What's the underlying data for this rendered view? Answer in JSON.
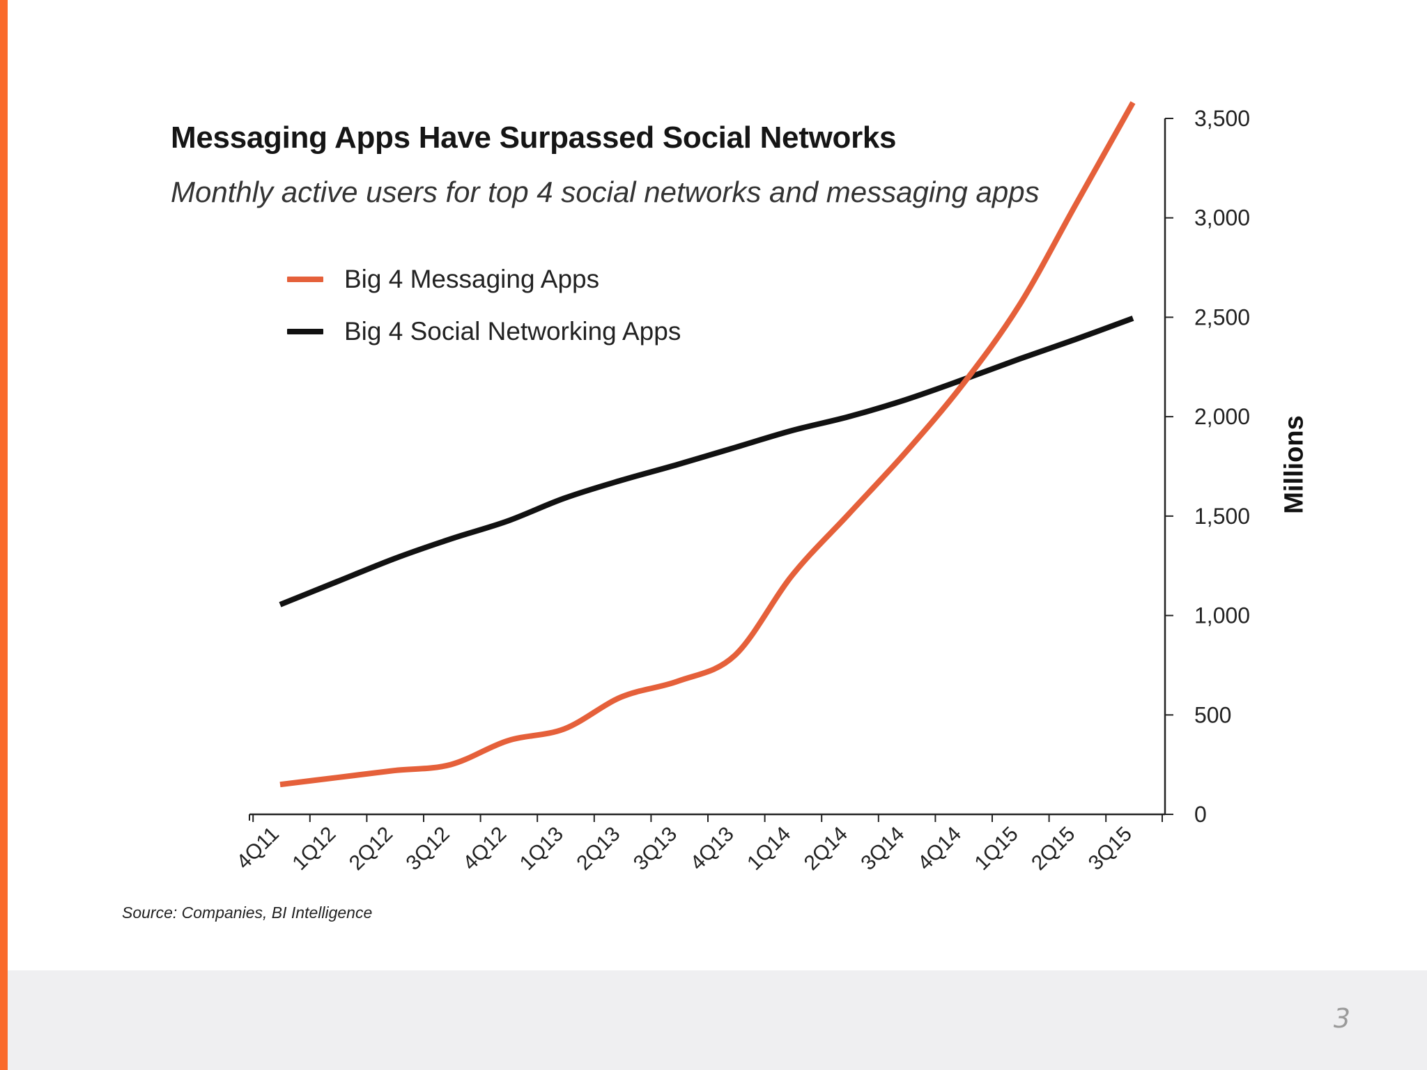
{
  "page": {
    "number": "3",
    "accent_color": "#fa6a2b",
    "footer_color": "#efeff1"
  },
  "chart_data": {
    "type": "line",
    "title": "Messaging Apps Have Surpassed Social Networks",
    "subtitle": "Monthly active users for top 4 social networks and messaging apps",
    "ylabel": "Millions",
    "xlabel": "",
    "ylim": [
      0,
      3500
    ],
    "y_ticks": [
      0,
      500,
      1000,
      1500,
      2000,
      2500,
      3000,
      3500
    ],
    "y_tick_labels": [
      "0",
      "500",
      "1,000",
      "1,500",
      "2,000",
      "2,500",
      "3,000",
      "3,500"
    ],
    "y_axis_side": "right",
    "grid": false,
    "legend_position": "top-left",
    "categories": [
      "4Q11",
      "1Q12",
      "2Q12",
      "3Q12",
      "4Q12",
      "1Q13",
      "2Q13",
      "3Q13",
      "4Q13",
      "1Q14",
      "2Q14",
      "3Q14",
      "4Q14",
      "1Q15",
      "2Q15",
      "3Q15"
    ],
    "series": [
      {
        "name": "Big 4 Messaging Apps",
        "color": "#e5603a",
        "values": [
          150,
          185,
          220,
          250,
          370,
          430,
          590,
          670,
          800,
          1200,
          1510,
          1820,
          2160,
          2560,
          3070,
          3580
        ]
      },
      {
        "name": "Big 4 Social Networking Apps",
        "color": "#111111",
        "values": [
          1055,
          1170,
          1285,
          1385,
          1475,
          1590,
          1680,
          1760,
          1845,
          1930,
          2000,
          2085,
          2185,
          2290,
          2390,
          2495
        ]
      }
    ],
    "source": "Source: Companies, BI Intelligence"
  }
}
